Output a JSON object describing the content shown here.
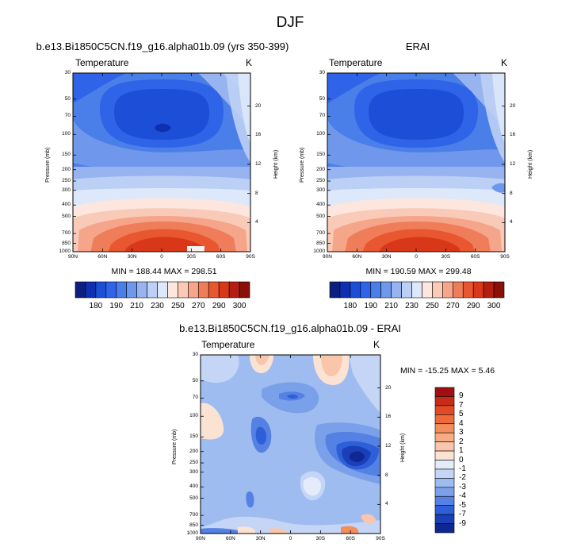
{
  "page": {
    "title": "DJF"
  },
  "panels": [
    {
      "id": "model",
      "header": "b.e13.Bi1850C5CN.f19_g16.alpha01b.09 (yrs 350-399)",
      "left_label": "Temperature",
      "right_label": "K",
      "minmax": "MIN = 188.44  MAX = 298.51"
    },
    {
      "id": "erai",
      "header": "ERAI",
      "left_label": "Temperature",
      "right_label": "K",
      "minmax": "MIN = 190.59  MAX = 299.48"
    },
    {
      "id": "diff",
      "header": "b.e13.Bi1850C5CN.f19_g16.alpha01b.09 - ERAI",
      "left_label": "Temperature",
      "right_label": "K",
      "minmax": "MIN = -15.25  MAX =   5.46"
    }
  ],
  "axes": {
    "ylabel": "Pressure (mb)",
    "y2label": "Height (km)",
    "pressure_ticks": [
      "30",
      "50",
      "70",
      "100",
      "150",
      "200",
      "250",
      "300",
      "400",
      "500",
      "700",
      "850",
      "1000"
    ],
    "height_ticks": [
      "20",
      "16",
      "12",
      "8",
      "4"
    ],
    "lat_ticks": [
      "90N",
      "60N",
      "30N",
      "0",
      "30S",
      "60S",
      "90S"
    ]
  },
  "colorbars": {
    "abs_labels": [
      "180",
      "190",
      "210",
      "230",
      "250",
      "270",
      "290",
      "300"
    ],
    "abs_colors": [
      "#0a1f80",
      "#0d2fb0",
      "#1d4ed8",
      "#2f63e8",
      "#4a7ee8",
      "#6f98ec",
      "#97b4f0",
      "#bccff5",
      "#dde8fa",
      "#fde6dd",
      "#f9cab7",
      "#f4a58a",
      "#ef7d59",
      "#e8572f",
      "#d9371a",
      "#b41e10",
      "#8a0f08"
    ],
    "diff_labels": [
      "9",
      "7",
      "5",
      "4",
      "3",
      "2",
      "1",
      "0",
      "-1",
      "-2",
      "-3",
      "-4",
      "-5",
      "-7",
      "-9"
    ],
    "diff_colors": [
      "#a01010",
      "#c82a18",
      "#e04a25",
      "#ee6a3a",
      "#f48d5c",
      "#f7ab82",
      "#f9c6ab",
      "#fbe3d4",
      "#e4ecfa",
      "#c4d5f5",
      "#9fbcf0",
      "#7ba0ea",
      "#5481e3",
      "#2e5ed8",
      "#1a3fb8",
      "#0d2890"
    ]
  },
  "chart_data": [
    {
      "type": "heatmap",
      "title": "b.e13.Bi1850C5CN.f19_g16.alpha01b.09 (yrs 350-399)",
      "xlabel": "",
      "ylabel": "Pressure (mb)",
      "y2label": "Height (km)",
      "units": "K",
      "x": [
        "90N",
        "60N",
        "30N",
        "0",
        "30S",
        "60S",
        "90S"
      ],
      "y_levels_mb": [
        30,
        50,
        70,
        100,
        150,
        200,
        250,
        300,
        400,
        500,
        700,
        850,
        1000
      ],
      "min": 188.44,
      "max": 298.51,
      "contour_levels": [
        180,
        190,
        200,
        210,
        220,
        230,
        240,
        250,
        260,
        270,
        280,
        290,
        300
      ]
    },
    {
      "type": "heatmap",
      "title": "ERAI",
      "xlabel": "",
      "ylabel": "Pressure (mb)",
      "y2label": "Height (km)",
      "units": "K",
      "x": [
        "90N",
        "60N",
        "30N",
        "0",
        "30S",
        "60S",
        "90S"
      ],
      "y_levels_mb": [
        30,
        50,
        70,
        100,
        150,
        200,
        250,
        300,
        400,
        500,
        700,
        850,
        1000
      ],
      "min": 190.59,
      "max": 299.48,
      "contour_levels": [
        180,
        190,
        200,
        210,
        220,
        230,
        240,
        250,
        260,
        270,
        280,
        290,
        300
      ]
    },
    {
      "type": "heatmap",
      "title": "b.e13.Bi1850C5CN.f19_g16.alpha01b.09 - ERAI",
      "xlabel": "",
      "ylabel": "Pressure (mb)",
      "y2label": "Height (km)",
      "units": "K",
      "x": [
        "90N",
        "60N",
        "30N",
        "0",
        "30S",
        "60S",
        "90S"
      ],
      "y_levels_mb": [
        30,
        50,
        70,
        100,
        150,
        200,
        250,
        300,
        400,
        500,
        700,
        850,
        1000
      ],
      "min": -15.25,
      "max": 5.46,
      "contour_levels": [
        -9,
        -7,
        -5,
        -4,
        -3,
        -2,
        -1,
        0,
        1,
        2,
        3,
        4,
        5,
        7,
        9
      ]
    }
  ]
}
